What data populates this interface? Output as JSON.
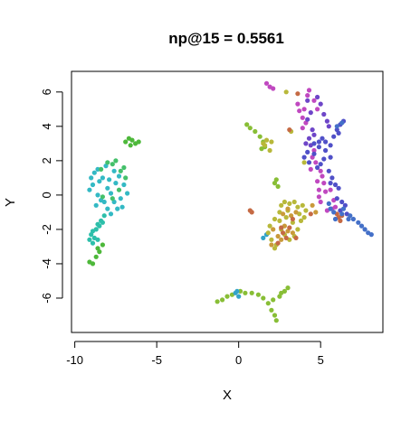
{
  "chart_data": {
    "type": "scatter",
    "title": "np@15 = 0.5561",
    "xlabel": "X",
    "ylabel": "Y",
    "xlim": [
      -10.2,
      8.8
    ],
    "ylim": [
      -8.0,
      7.2
    ],
    "x_ticks": [
      -10,
      -5,
      0,
      5
    ],
    "x_tick_labels": [
      "-10",
      "-5",
      "0",
      "5"
    ],
    "y_ticks": [
      -6,
      -4,
      -2,
      0,
      2,
      4,
      6
    ],
    "y_tick_labels": [
      "-6",
      "-4",
      "-2",
      "0",
      "2",
      "4",
      "6"
    ],
    "grid": false,
    "legend": "none",
    "series": [
      {
        "color": "#2DBFAA",
        "points": [
          [
            -8.9,
            -2.8
          ],
          [
            -8.8,
            -2.5
          ],
          [
            -9.0,
            -2.3
          ],
          [
            -8.7,
            -2.0
          ],
          [
            -8.5,
            -1.8
          ],
          [
            -8.4,
            -1.5
          ],
          [
            -8.6,
            -1.7
          ],
          [
            -8.2,
            -1.2
          ],
          [
            -8.3,
            -1.6
          ],
          [
            -8.9,
            -2.1
          ],
          [
            -8.6,
            -2.6
          ],
          [
            -9.1,
            -2.6
          ]
        ]
      },
      {
        "color": "#33B9C4",
        "points": [
          [
            -8.6,
            1.5
          ],
          [
            -8.8,
            1.3
          ],
          [
            -9.0,
            1.0
          ],
          [
            -8.9,
            0.6
          ],
          [
            -9.1,
            0.3
          ],
          [
            -8.6,
            0.0
          ],
          [
            -8.4,
            -0.3
          ],
          [
            -8.7,
            -0.6
          ],
          [
            -8.2,
            -0.4
          ],
          [
            -8.0,
            0.4
          ],
          [
            -7.8,
            0.1
          ],
          [
            -7.6,
            -0.4
          ],
          [
            -7.4,
            -0.8
          ],
          [
            -7.2,
            -0.2
          ],
          [
            -7.0,
            0.6
          ],
          [
            -7.3,
            1.1
          ],
          [
            -7.6,
            1.4
          ],
          [
            -8.1,
            1.7
          ],
          [
            -8.3,
            1.0
          ],
          [
            -7.9,
            0.9
          ],
          [
            -7.5,
            0.7
          ],
          [
            -8.5,
            0.8
          ],
          [
            -8.0,
            -0.8
          ],
          [
            -7.8,
            -1.1
          ],
          [
            -6.8,
            0.1
          ],
          [
            -7.1,
            -0.7
          ]
        ]
      },
      {
        "color": "#44C06A",
        "points": [
          [
            -8.0,
            1.9
          ],
          [
            -7.7,
            1.8
          ],
          [
            -7.5,
            2.0
          ],
          [
            -7.2,
            1.4
          ],
          [
            -7.0,
            1.6
          ],
          [
            -6.9,
            1.0
          ],
          [
            -8.3,
            -0.1
          ],
          [
            -7.7,
            -0.2
          ],
          [
            -7.3,
            0.3
          ],
          [
            -8.4,
            1.5
          ]
        ]
      },
      {
        "color": "#4DB83A",
        "points": [
          [
            -8.3,
            -2.9
          ],
          [
            -8.5,
            -3.3
          ],
          [
            -8.7,
            -3.6
          ],
          [
            -8.9,
            -4.0
          ],
          [
            -9.1,
            -3.9
          ],
          [
            -8.6,
            -3.1
          ],
          [
            -6.9,
            3.1
          ],
          [
            -6.7,
            3.3
          ],
          [
            -6.5,
            3.2
          ],
          [
            -6.3,
            3.0
          ],
          [
            -6.1,
            3.1
          ],
          [
            -6.6,
            2.9
          ]
        ]
      },
      {
        "color": "#88BE36",
        "points": [
          [
            0.5,
            4.1
          ],
          [
            0.7,
            3.9
          ],
          [
            1.0,
            3.7
          ],
          [
            1.3,
            3.4
          ],
          [
            1.5,
            3.1
          ],
          [
            1.6,
            2.8
          ],
          [
            1.4,
            2.7
          ],
          [
            2.3,
            0.9
          ],
          [
            2.2,
            0.7
          ],
          [
            2.4,
            0.5
          ],
          [
            -1.3,
            -6.2
          ],
          [
            -1.0,
            -6.1
          ],
          [
            -0.7,
            -5.9
          ],
          [
            -0.4,
            -5.8
          ],
          [
            0.4,
            -5.7
          ],
          [
            0.8,
            -5.7
          ],
          [
            1.2,
            -5.8
          ],
          [
            1.5,
            -6.0
          ],
          [
            1.8,
            -6.3
          ],
          [
            2.0,
            -6.7
          ],
          [
            2.2,
            -7.0
          ],
          [
            2.3,
            -7.3
          ],
          [
            2.5,
            -5.9
          ],
          [
            2.8,
            -5.6
          ],
          [
            3.0,
            -5.4
          ],
          [
            2.6,
            -5.7
          ],
          [
            2.1,
            -6.1
          ],
          [
            0.1,
            -5.6
          ]
        ]
      },
      {
        "color": "#33A3C8",
        "points": [
          [
            -0.1,
            -5.6
          ],
          [
            0.0,
            -5.9
          ],
          [
            -0.2,
            -5.7
          ],
          [
            1.7,
            -2.3
          ],
          [
            1.5,
            -2.5
          ]
        ]
      },
      {
        "color": "#B8B83A",
        "points": [
          [
            1.5,
            3.0
          ],
          [
            1.7,
            3.2
          ],
          [
            2.0,
            3.1
          ],
          [
            1.6,
            2.9
          ],
          [
            1.9,
            2.6
          ],
          [
            2.6,
            -0.6
          ],
          [
            2.8,
            -0.4
          ],
          [
            3.1,
            -0.5
          ],
          [
            3.4,
            -0.4
          ],
          [
            3.6,
            -0.7
          ],
          [
            3.7,
            -1.1
          ],
          [
            3.8,
            -1.5
          ],
          [
            3.6,
            -2.0
          ],
          [
            3.4,
            -2.4
          ],
          [
            3.1,
            -2.6
          ],
          [
            2.8,
            -2.3
          ],
          [
            2.6,
            -2.0
          ],
          [
            2.5,
            -1.5
          ],
          [
            2.5,
            -1.0
          ],
          [
            2.2,
            -1.4
          ],
          [
            1.9,
            -1.8
          ],
          [
            1.8,
            -2.2
          ],
          [
            2.0,
            -2.6
          ],
          [
            2.3,
            -2.9
          ],
          [
            2.2,
            -3.1
          ],
          [
            3.9,
            -0.6
          ],
          [
            4.1,
            -0.9
          ],
          [
            4.0,
            -1.3
          ],
          [
            2.9,
            6.0
          ],
          [
            3.2,
            3.7
          ],
          [
            3.0,
            -0.9
          ],
          [
            3.3,
            -1.6
          ],
          [
            2.9,
            -1.3
          ],
          [
            4.0,
            1.9
          ]
        ]
      },
      {
        "color": "#C99A3A",
        "points": [
          [
            3.0,
            -0.8
          ],
          [
            3.2,
            -1.2
          ],
          [
            2.8,
            -1.8
          ],
          [
            3.0,
            -2.1
          ],
          [
            3.3,
            -2.2
          ],
          [
            2.4,
            -2.4
          ],
          [
            2.1,
            -2.0
          ],
          [
            2.6,
            -2.6
          ],
          [
            2.0,
            -2.9
          ],
          [
            3.5,
            -1.0
          ],
          [
            2.7,
            -1.1
          ],
          [
            4.5,
            -0.6
          ],
          [
            4.7,
            -1.0
          ]
        ]
      },
      {
        "color": "#C56A44",
        "points": [
          [
            0.7,
            -0.9
          ],
          [
            0.8,
            -1.0
          ],
          [
            2.6,
            -1.9
          ],
          [
            2.9,
            -2.5
          ],
          [
            3.1,
            -1.9
          ],
          [
            3.5,
            -2.5
          ],
          [
            2.4,
            -2.8
          ],
          [
            3.3,
            -1.4
          ],
          [
            2.7,
            -2.2
          ],
          [
            3.6,
            5.9
          ],
          [
            3.1,
            3.8
          ],
          [
            6.1,
            -1.3
          ],
          [
            6.3,
            -1.2
          ],
          [
            6.2,
            -1.5
          ],
          [
            6.0,
            -1.1
          ],
          [
            4.4,
            -1.1
          ]
        ]
      },
      {
        "color": "#C048C0",
        "points": [
          [
            1.7,
            6.5
          ],
          [
            1.9,
            6.3
          ],
          [
            2.1,
            6.2
          ],
          [
            3.6,
            5.3
          ],
          [
            3.7,
            4.9
          ],
          [
            3.9,
            4.5
          ],
          [
            4.1,
            4.2
          ],
          [
            3.9,
            3.9
          ],
          [
            4.6,
            2.6
          ],
          [
            4.5,
            2.2
          ],
          [
            4.7,
            1.9
          ],
          [
            5.0,
            1.4
          ],
          [
            5.1,
            1.1
          ],
          [
            5.2,
            0.7
          ],
          [
            4.9,
            0.3
          ],
          [
            5.3,
            0.2
          ],
          [
            5.6,
            0.3
          ],
          [
            5.8,
            -0.3
          ],
          [
            5.9,
            -0.7
          ],
          [
            5.7,
            -0.8
          ],
          [
            4.9,
            -0.1
          ],
          [
            5.0,
            -0.4
          ],
          [
            4.8,
            5.0
          ],
          [
            4.6,
            5.5
          ],
          [
            4.3,
            6.1
          ],
          [
            4.2,
            5.8
          ],
          [
            4.0,
            5.0
          ],
          [
            5.4,
            -0.9
          ],
          [
            4.8,
            0.8
          ],
          [
            4.4,
            1.5
          ]
        ]
      },
      {
        "color": "#6E46C8",
        "points": [
          [
            4.8,
            5.7
          ],
          [
            5.0,
            5.3
          ],
          [
            5.2,
            4.7
          ],
          [
            5.4,
            4.3
          ],
          [
            5.5,
            4.0
          ],
          [
            4.4,
            4.8
          ],
          [
            4.2,
            4.4
          ],
          [
            4.5,
            3.8
          ],
          [
            4.3,
            3.3
          ],
          [
            4.1,
            3.0
          ],
          [
            4.4,
            2.9
          ],
          [
            4.6,
            3.5
          ],
          [
            4.2,
            5.5
          ]
        ]
      },
      {
        "color": "#5050C8",
        "points": [
          [
            4.6,
            3.0
          ],
          [
            4.9,
            2.8
          ],
          [
            5.1,
            3.3
          ],
          [
            5.3,
            3.1
          ],
          [
            5.6,
            2.9
          ],
          [
            5.8,
            3.4
          ],
          [
            6.0,
            3.8
          ],
          [
            6.2,
            4.1
          ],
          [
            6.4,
            4.3
          ],
          [
            6.1,
            3.6
          ],
          [
            5.2,
            2.1
          ],
          [
            5.0,
            1.8
          ],
          [
            4.8,
            1.6
          ],
          [
            5.5,
            1.4
          ],
          [
            5.7,
            1.0
          ],
          [
            5.9,
            0.6
          ],
          [
            6.1,
            0.4
          ],
          [
            5.6,
            0.7
          ],
          [
            6.0,
            -0.2
          ],
          [
            6.3,
            -0.4
          ],
          [
            6.5,
            -0.6
          ],
          [
            6.2,
            -0.9
          ],
          [
            6.6,
            -1.1
          ],
          [
            4.2,
            2.5
          ],
          [
            4.0,
            2.2
          ],
          [
            4.3,
            1.9
          ],
          [
            4.6,
            2.4
          ],
          [
            5.3,
            2.6
          ],
          [
            5.6,
            2.2
          ],
          [
            4.9,
            3.1
          ]
        ]
      },
      {
        "color": "#4470C8",
        "points": [
          [
            6.4,
            -0.8
          ],
          [
            6.8,
            -1.2
          ],
          [
            7.0,
            -1.4
          ],
          [
            7.3,
            -1.6
          ],
          [
            7.5,
            -1.8
          ],
          [
            7.7,
            -2.0
          ],
          [
            7.9,
            -2.2
          ],
          [
            8.1,
            -2.3
          ],
          [
            6.7,
            -1.4
          ],
          [
            5.6,
            -0.8
          ],
          [
            5.8,
            -1.0
          ],
          [
            5.5,
            -0.5
          ],
          [
            5.9,
            -1.4
          ],
          [
            6.3,
            -1.1
          ],
          [
            6.0,
            4.0
          ],
          [
            6.3,
            4.2
          ]
        ]
      }
    ]
  }
}
